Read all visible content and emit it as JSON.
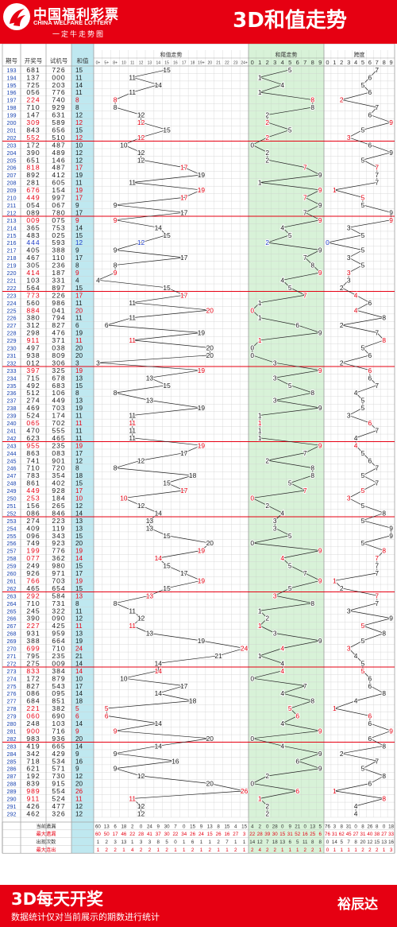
{
  "header": {
    "logo_name": "中国福利彩票",
    "logo_english": "CHINA WELFARE LOTTERY",
    "logo_slogan": "一定牛走势图",
    "title": "3D和值走势"
  },
  "footer": {
    "title": "3D每天开奖",
    "note": "数据统计仅对当前展示的期数进行统计",
    "author": "裕辰达"
  },
  "colors": {
    "brand_red": "#e60012",
    "highlight_red": "#e60012",
    "blue_number": "#1e3cc8",
    "sum_column_bg": "#bfe8f0",
    "tail_zone_bg": "#d8f2d8",
    "line_color": "#222222",
    "divider_red": "#e60012"
  },
  "chart_data": {
    "type": "table",
    "columns": [
      "期号",
      "开奖号",
      "试机号",
      "和值"
    ],
    "group_headers": [
      "和值走势",
      "和尾走势",
      "跨度"
    ],
    "sum_headers": [
      "0+",
      "5+",
      "8+",
      "10",
      "11",
      "12",
      "13",
      "14",
      "15",
      "16",
      "17",
      "18",
      "19+",
      "20",
      "21",
      "22",
      "23",
      "24+"
    ],
    "tail_headers": [
      "0",
      "1",
      "2",
      "3",
      "4",
      "5",
      "6",
      "7",
      "8",
      "9"
    ],
    "span_headers": [
      "0",
      "1",
      "2",
      "3",
      "4",
      "5",
      "6",
      "7",
      "8",
      "9"
    ],
    "rows": [
      {
        "issue": "193",
        "draw": "681",
        "trial": "726",
        "sum": 15,
        "tail": 5,
        "span": 7
      },
      {
        "issue": "194",
        "draw": "137",
        "trial": "000",
        "sum": 11,
        "tail": 1,
        "span": 6
      },
      {
        "issue": "195",
        "draw": "725",
        "trial": "203",
        "sum": 14,
        "tail": 4,
        "span": 5
      },
      {
        "issue": "196",
        "draw": "056",
        "trial": "776",
        "sum": 11,
        "tail": 1,
        "span": 6
      },
      {
        "issue": "197",
        "draw": "224",
        "trial": "740",
        "sum": 8,
        "tail": 8,
        "span": 2
      },
      {
        "issue": "198",
        "draw": "710",
        "trial": "929",
        "sum": 8,
        "tail": 8,
        "span": 7
      },
      {
        "issue": "199",
        "draw": "147",
        "trial": "631",
        "sum": 12,
        "tail": 2,
        "span": 6
      },
      {
        "issue": "200",
        "draw": "309",
        "trial": "589",
        "sum": 12,
        "tail": 2,
        "span": 9
      },
      {
        "issue": "201",
        "draw": "843",
        "trial": "656",
        "sum": 15,
        "tail": 5,
        "span": 5
      },
      {
        "issue": "202",
        "draw": "552",
        "trial": "510",
        "sum": 12,
        "tail": 2,
        "span": 3
      },
      {
        "issue": "203",
        "draw": "172",
        "trial": "487",
        "sum": 10,
        "tail": 0,
        "span": 6
      },
      {
        "issue": "204",
        "draw": "390",
        "trial": "489",
        "sum": 12,
        "tail": 2,
        "span": 9
      },
      {
        "issue": "205",
        "draw": "651",
        "trial": "146",
        "sum": 12,
        "tail": 2,
        "span": 5
      },
      {
        "issue": "206",
        "draw": "818",
        "trial": "487",
        "sum": 17,
        "tail": 7,
        "span": 7
      },
      {
        "issue": "207",
        "draw": "892",
        "trial": "412",
        "sum": 19,
        "tail": 9,
        "span": 7
      },
      {
        "issue": "208",
        "draw": "281",
        "trial": "605",
        "sum": 11,
        "tail": 1,
        "span": 7
      },
      {
        "issue": "209",
        "draw": "676",
        "trial": "154",
        "sum": 19,
        "tail": 9,
        "span": 1
      },
      {
        "issue": "210",
        "draw": "449",
        "trial": "997",
        "sum": 17,
        "tail": 7,
        "span": 5
      },
      {
        "issue": "211",
        "draw": "054",
        "trial": "067",
        "sum": 9,
        "tail": 9,
        "span": 5
      },
      {
        "issue": "212",
        "draw": "089",
        "trial": "780",
        "sum": 17,
        "tail": 7,
        "span": 9
      },
      {
        "issue": "213",
        "draw": "009",
        "trial": "075",
        "sum": 9,
        "tail": 9,
        "span": 9
      },
      {
        "issue": "214",
        "draw": "365",
        "trial": "753",
        "sum": 14,
        "tail": 4,
        "span": 3
      },
      {
        "issue": "215",
        "draw": "483",
        "trial": "025",
        "sum": 15,
        "tail": 5,
        "span": 5
      },
      {
        "issue": "216",
        "draw": "444",
        "trial": "593",
        "sum": 12,
        "tail": 2,
        "span": 0
      },
      {
        "issue": "217",
        "draw": "405",
        "trial": "388",
        "sum": 9,
        "tail": 9,
        "span": 5
      },
      {
        "issue": "218",
        "draw": "467",
        "trial": "110",
        "sum": 17,
        "tail": 7,
        "span": 3
      },
      {
        "issue": "219",
        "draw": "305",
        "trial": "236",
        "sum": 8,
        "tail": 8,
        "span": 5
      },
      {
        "issue": "220",
        "draw": "414",
        "trial": "187",
        "sum": 9,
        "tail": 9,
        "span": 3
      },
      {
        "issue": "221",
        "draw": "103",
        "trial": "331",
        "sum": 4,
        "tail": 4,
        "span": 3
      },
      {
        "issue": "222",
        "draw": "564",
        "trial": "897",
        "sum": 15,
        "tail": 5,
        "span": 2
      },
      {
        "issue": "223",
        "draw": "773",
        "trial": "226",
        "sum": 17,
        "tail": 7,
        "span": 4
      },
      {
        "issue": "224",
        "draw": "560",
        "trial": "986",
        "sum": 11,
        "tail": 1,
        "span": 6
      },
      {
        "issue": "225",
        "draw": "884",
        "trial": "041",
        "sum": 20,
        "tail": 0,
        "span": 4
      },
      {
        "issue": "226",
        "draw": "380",
        "trial": "794",
        "sum": 11,
        "tail": 1,
        "span": 8
      },
      {
        "issue": "227",
        "draw": "312",
        "trial": "827",
        "sum": 6,
        "tail": 6,
        "span": 2
      },
      {
        "issue": "228",
        "draw": "298",
        "trial": "476",
        "sum": 19,
        "tail": 9,
        "span": 7
      },
      {
        "issue": "229",
        "draw": "911",
        "trial": "371",
        "sum": 11,
        "tail": 1,
        "span": 8
      },
      {
        "issue": "230",
        "draw": "497",
        "trial": "038",
        "sum": 20,
        "tail": 0,
        "span": 5
      },
      {
        "issue": "231",
        "draw": "938",
        "trial": "809",
        "sum": 20,
        "tail": 0,
        "span": 6
      },
      {
        "issue": "232",
        "draw": "012",
        "trial": "306",
        "sum": 3,
        "tail": 3,
        "span": 2
      },
      {
        "issue": "233",
        "draw": "397",
        "trial": "325",
        "sum": 19,
        "tail": 9,
        "span": 6
      },
      {
        "issue": "234",
        "draw": "715",
        "trial": "678",
        "sum": 13,
        "tail": 3,
        "span": 6
      },
      {
        "issue": "235",
        "draw": "492",
        "trial": "683",
        "sum": 15,
        "tail": 5,
        "span": 7
      },
      {
        "issue": "236",
        "draw": "512",
        "trial": "106",
        "sum": 8,
        "tail": 8,
        "span": 4
      },
      {
        "issue": "237",
        "draw": "274",
        "trial": "449",
        "sum": 13,
        "tail": 3,
        "span": 5
      },
      {
        "issue": "238",
        "draw": "469",
        "trial": "703",
        "sum": 19,
        "tail": 9,
        "span": 5
      },
      {
        "issue": "239",
        "draw": "524",
        "trial": "174",
        "sum": 11,
        "tail": 1,
        "span": 3
      },
      {
        "issue": "240",
        "draw": "065",
        "trial": "702",
        "sum": 11,
        "tail": 1,
        "span": 6
      },
      {
        "issue": "241",
        "draw": "470",
        "trial": "555",
        "sum": 11,
        "tail": 1,
        "span": 7
      },
      {
        "issue": "242",
        "draw": "623",
        "trial": "465",
        "sum": 11,
        "tail": 1,
        "span": 4
      },
      {
        "issue": "243",
        "draw": "955",
        "trial": "235",
        "sum": 19,
        "tail": 9,
        "span": 4
      },
      {
        "issue": "244",
        "draw": "863",
        "trial": "083",
        "sum": 17,
        "tail": 7,
        "span": 5
      },
      {
        "issue": "245",
        "draw": "741",
        "trial": "901",
        "sum": 12,
        "tail": 2,
        "span": 6
      },
      {
        "issue": "246",
        "draw": "710",
        "trial": "720",
        "sum": 8,
        "tail": 8,
        "span": 7
      },
      {
        "issue": "247",
        "draw": "783",
        "trial": "354",
        "sum": 18,
        "tail": 8,
        "span": 5
      },
      {
        "issue": "248",
        "draw": "861",
        "trial": "402",
        "sum": 15,
        "tail": 5,
        "span": 7
      },
      {
        "issue": "249",
        "draw": "449",
        "trial": "928",
        "sum": 17,
        "tail": 7,
        "span": 5
      },
      {
        "issue": "250",
        "draw": "253",
        "trial": "184",
        "sum": 10,
        "tail": 0,
        "span": 3
      },
      {
        "issue": "251",
        "draw": "156",
        "trial": "265",
        "sum": 12,
        "tail": 2,
        "span": 5
      },
      {
        "issue": "252",
        "draw": "086",
        "trial": "846",
        "sum": 14,
        "tail": 4,
        "span": 8
      },
      {
        "issue": "253",
        "draw": "274",
        "trial": "223",
        "sum": 13,
        "tail": 3,
        "span": 5
      },
      {
        "issue": "254",
        "draw": "409",
        "trial": "119",
        "sum": 13,
        "tail": 3,
        "span": 9
      },
      {
        "issue": "255",
        "draw": "096",
        "trial": "343",
        "sum": 15,
        "tail": 5,
        "span": 9
      },
      {
        "issue": "256",
        "draw": "749",
        "trial": "923",
        "sum": 20,
        "tail": 0,
        "span": 5
      },
      {
        "issue": "257",
        "draw": "199",
        "trial": "776",
        "sum": 19,
        "tail": 9,
        "span": 8
      },
      {
        "issue": "258",
        "draw": "077",
        "trial": "362",
        "sum": 14,
        "tail": 4,
        "span": 7
      },
      {
        "issue": "259",
        "draw": "249",
        "trial": "980",
        "sum": 15,
        "tail": 5,
        "span": 7
      },
      {
        "issue": "260",
        "draw": "926",
        "trial": "971",
        "sum": 17,
        "tail": 7,
        "span": 7
      },
      {
        "issue": "261",
        "draw": "766",
        "trial": "703",
        "sum": 19,
        "tail": 9,
        "span": 1
      },
      {
        "issue": "262",
        "draw": "465",
        "trial": "654",
        "sum": 15,
        "tail": 5,
        "span": 2
      },
      {
        "issue": "263",
        "draw": "292",
        "trial": "584",
        "sum": 13,
        "tail": 3,
        "span": 7
      },
      {
        "issue": "264",
        "draw": "710",
        "trial": "731",
        "sum": 8,
        "tail": 8,
        "span": 7
      },
      {
        "issue": "265",
        "draw": "245",
        "trial": "322",
        "sum": 11,
        "tail": 1,
        "span": 3
      },
      {
        "issue": "266",
        "draw": "390",
        "trial": "090",
        "sum": 12,
        "tail": 2,
        "span": 9
      },
      {
        "issue": "267",
        "draw": "227",
        "trial": "425",
        "sum": 11,
        "tail": 1,
        "span": 5
      },
      {
        "issue": "268",
        "draw": "931",
        "trial": "959",
        "sum": 13,
        "tail": 3,
        "span": 8
      },
      {
        "issue": "269",
        "draw": "388",
        "trial": "664",
        "sum": 19,
        "tail": 9,
        "span": 5
      },
      {
        "issue": "270",
        "draw": "699",
        "trial": "710",
        "sum": 24,
        "tail": 4,
        "span": 3
      },
      {
        "issue": "271",
        "draw": "795",
        "trial": "235",
        "sum": 21,
        "tail": 1,
        "span": 4
      },
      {
        "issue": "272",
        "draw": "275",
        "trial": "009",
        "sum": 14,
        "tail": 4,
        "span": 5
      },
      {
        "issue": "273",
        "draw": "833",
        "trial": "384",
        "sum": 14,
        "tail": 4,
        "span": 5
      },
      {
        "issue": "274",
        "draw": "172",
        "trial": "879",
        "sum": 10,
        "tail": 0,
        "span": 6
      },
      {
        "issue": "275",
        "draw": "827",
        "trial": "543",
        "sum": 17,
        "tail": 7,
        "span": 6
      },
      {
        "issue": "276",
        "draw": "086",
        "trial": "095",
        "sum": 14,
        "tail": 4,
        "span": 8
      },
      {
        "issue": "277",
        "draw": "684",
        "trial": "851",
        "sum": 18,
        "tail": 8,
        "span": 4
      },
      {
        "issue": "278",
        "draw": "221",
        "trial": "382",
        "sum": 5,
        "tail": 5,
        "span": 1
      },
      {
        "issue": "279",
        "draw": "060",
        "trial": "690",
        "sum": 6,
        "tail": 6,
        "span": 6
      },
      {
        "issue": "280",
        "draw": "248",
        "trial": "103",
        "sum": 14,
        "tail": 4,
        "span": 6
      },
      {
        "issue": "281",
        "draw": "900",
        "trial": "716",
        "sum": 9,
        "tail": 9,
        "span": 9
      },
      {
        "issue": "282",
        "draw": "983",
        "trial": "936",
        "sum": 20,
        "tail": 0,
        "span": 6
      },
      {
        "issue": "283",
        "draw": "419",
        "trial": "665",
        "sum": 14,
        "tail": 4,
        "span": 8
      },
      {
        "issue": "284",
        "draw": "342",
        "trial": "429",
        "sum": 9,
        "tail": 9,
        "span": 2
      },
      {
        "issue": "285",
        "draw": "718",
        "trial": "534",
        "sum": 16,
        "tail": 6,
        "span": 7
      },
      {
        "issue": "286",
        "draw": "621",
        "trial": "571",
        "sum": 9,
        "tail": 9,
        "span": 5
      },
      {
        "issue": "287",
        "draw": "192",
        "trial": "730",
        "sum": 12,
        "tail": 2,
        "span": 8
      },
      {
        "issue": "288",
        "draw": "839",
        "trial": "915",
        "sum": 20,
        "tail": 0,
        "span": 6
      },
      {
        "issue": "289",
        "draw": "989",
        "trial": "554",
        "sum": 26,
        "tail": 6,
        "span": 1
      },
      {
        "issue": "290",
        "draw": "911",
        "trial": "524",
        "sum": 11,
        "tail": 1,
        "span": 8
      },
      {
        "issue": "291",
        "draw": "426",
        "trial": "477",
        "sum": 12,
        "tail": 2,
        "span": 4
      },
      {
        "issue": "292",
        "draw": "462",
        "trial": "326",
        "sum": 12,
        "tail": 2,
        "span": 4
      }
    ],
    "red_issues": [
      "197",
      "200",
      "202",
      "206",
      "209",
      "210",
      "213",
      "220",
      "223",
      "225",
      "229",
      "233",
      "240",
      "243",
      "249",
      "250",
      "257",
      "258",
      "261",
      "263",
      "267",
      "270",
      "273",
      "278",
      "279",
      "281",
      "289",
      "290"
    ],
    "blue_issues": [
      "216"
    ],
    "stats_labels": [
      "当前遗漏",
      "最大遗漏",
      "出现次数",
      "最大连出"
    ],
    "stats": {
      "sum": [
        [
          60,
          13,
          6,
          18,
          2,
          0,
          24,
          9,
          30,
          7,
          0,
          15,
          9,
          13,
          8,
          15,
          4,
          15
        ],
        [
          60,
          50,
          17,
          46,
          22,
          28,
          41,
          37,
          30,
          22,
          34,
          26,
          24,
          15,
          26,
          16,
          27,
          3
        ],
        [
          1,
          2,
          3,
          13,
          1,
          3,
          3,
          8,
          5,
          0,
          1,
          6,
          1,
          1,
          2,
          7,
          1,
          1
        ],
        [
          1,
          2,
          2,
          1,
          4,
          2,
          2,
          1,
          2,
          1,
          1,
          2,
          1,
          2,
          1,
          1,
          2,
          1
        ]
      ],
      "tail": [
        [
          4,
          2,
          0,
          28,
          0,
          9,
          21,
          0,
          13,
          5
        ],
        [
          22,
          28,
          39,
          30,
          15,
          31,
          52,
          16,
          25,
          6
        ],
        [
          14,
          12,
          7,
          18,
          13,
          6,
          5,
          11,
          8,
          8
        ],
        [
          2,
          4,
          2,
          2,
          1,
          1,
          1,
          2,
          2,
          1
        ]
      ],
      "span": [
        [
          76,
          3,
          8,
          31,
          0,
          8,
          26,
          8,
          0,
          18
        ],
        [
          76,
          31,
          62,
          45,
          27,
          31,
          40,
          38,
          27,
          33
        ],
        [
          0,
          14,
          5,
          7,
          8,
          20,
          12,
          15,
          13,
          16
        ],
        [
          0,
          1,
          1,
          1,
          1,
          2,
          2,
          2,
          1,
          3
        ]
      ]
    }
  }
}
